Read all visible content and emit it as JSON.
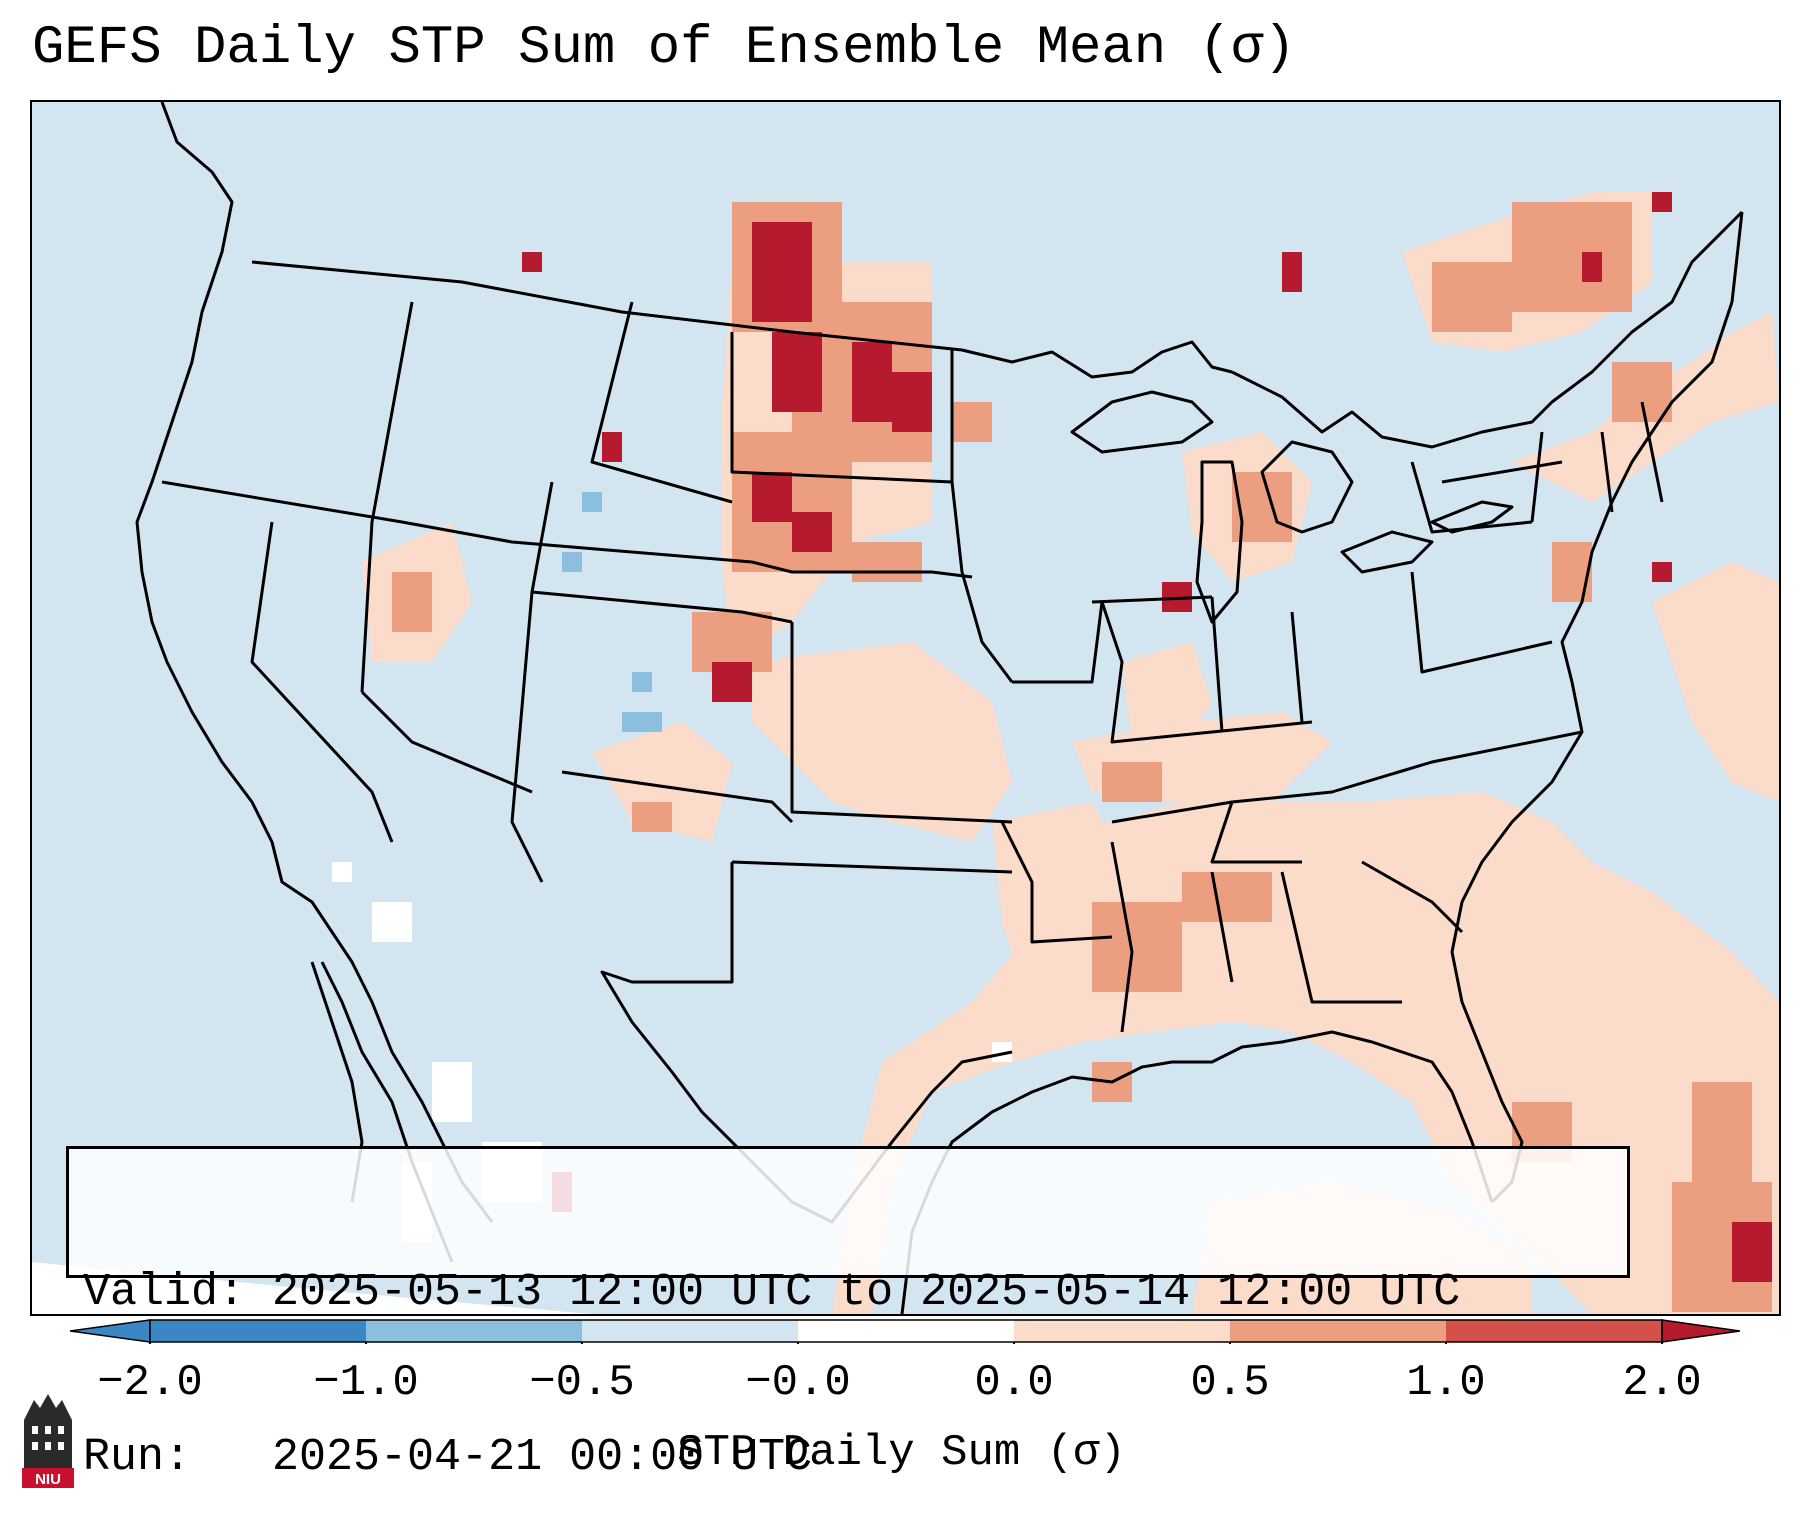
{
  "title": "GEFS Daily STP Sum of Ensemble Mean (σ)",
  "info": {
    "valid_line": "Valid: 2025-05-13 12:00 UTC to 2025-05-14 12:00 UTC",
    "run_line": "Run:   2025-04-21 00:00 UTC"
  },
  "colorbar": {
    "label": "STP Daily Sum (σ)",
    "ticks": [
      "−2.0",
      "−1.0",
      "−0.5",
      "−0.0",
      "0.0",
      "0.5",
      "1.0",
      "2.0"
    ],
    "colors": [
      "#3b86c4",
      "#8bbfdd",
      "#d2e5f1",
      "#ffffff",
      "#fbdbc9",
      "#ec9e80",
      "#d3514a",
      "#b51a2f"
    ]
  },
  "logo_text": "NIU"
}
